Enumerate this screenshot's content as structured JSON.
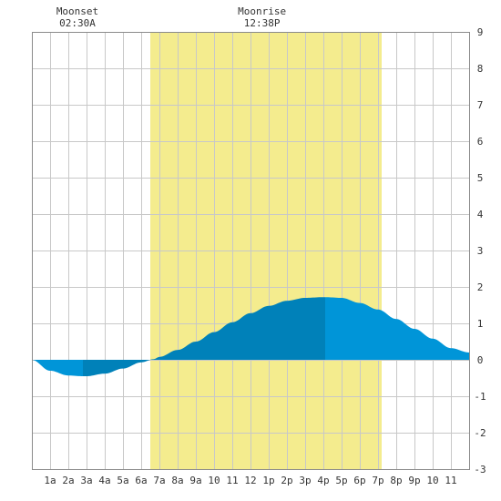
{
  "chart_data": {
    "type": "area",
    "title": "",
    "xlabel": "",
    "ylabel": "",
    "x_range": [
      0,
      24
    ],
    "ylim": [
      -3,
      9
    ],
    "y_ticks": [
      -3,
      -2,
      -1,
      0,
      1,
      2,
      3,
      4,
      5,
      6,
      7,
      8,
      9
    ],
    "x_tick_labels": [
      {
        "hour": 1,
        "label": "1a"
      },
      {
        "hour": 2,
        "label": "2a"
      },
      {
        "hour": 3,
        "label": "3a"
      },
      {
        "hour": 4,
        "label": "4a"
      },
      {
        "hour": 5,
        "label": "5a"
      },
      {
        "hour": 6,
        "label": "6a"
      },
      {
        "hour": 7,
        "label": "7a"
      },
      {
        "hour": 8,
        "label": "8a"
      },
      {
        "hour": 9,
        "label": "9a"
      },
      {
        "hour": 10,
        "label": "10"
      },
      {
        "hour": 11,
        "label": "11"
      },
      {
        "hour": 12,
        "label": "12"
      },
      {
        "hour": 13,
        "label": "1p"
      },
      {
        "hour": 14,
        "label": "2p"
      },
      {
        "hour": 15,
        "label": "3p"
      },
      {
        "hour": 16,
        "label": "4p"
      },
      {
        "hour": 17,
        "label": "5p"
      },
      {
        "hour": 18,
        "label": "6p"
      },
      {
        "hour": 19,
        "label": "7p"
      },
      {
        "hour": 20,
        "label": "8p"
      },
      {
        "hour": 21,
        "label": "9p"
      },
      {
        "hour": 22,
        "label": "10"
      },
      {
        "hour": 23,
        "label": "11"
      }
    ],
    "daylight": {
      "start": 6.5,
      "end": 19.2
    },
    "tide": {
      "x": [
        0,
        1,
        2,
        2.8,
        3,
        4,
        5,
        6,
        6.7,
        7,
        8,
        9,
        10,
        11,
        12,
        13,
        14,
        15,
        16,
        16.1,
        17,
        18,
        19,
        20,
        21,
        22,
        23,
        24
      ],
      "y": [
        0.0,
        -0.3,
        -0.43,
        -0.45,
        -0.45,
        -0.38,
        -0.24,
        -0.07,
        0.02,
        0.08,
        0.27,
        0.5,
        0.76,
        1.03,
        1.28,
        1.48,
        1.62,
        1.7,
        1.72,
        1.72,
        1.7,
        1.56,
        1.38,
        1.12,
        0.85,
        0.58,
        0.32,
        0.2
      ],
      "bands": [
        {
          "start": 0,
          "end": 2.8,
          "color": "#0095d8"
        },
        {
          "start": 2.8,
          "end": 6.7,
          "color": "#0081b9"
        },
        {
          "start": 6.7,
          "end": 16.1,
          "color": "#0081b9"
        },
        {
          "start": 16.1,
          "end": 24,
          "color": "#0095d8"
        }
      ]
    },
    "annotations": [
      {
        "label": "Moonset",
        "time": "02:30A",
        "x": 2.5
      },
      {
        "label": "Moonrise",
        "time": "12:38P",
        "x": 12.63
      }
    ],
    "grid": true,
    "colors": {
      "daylight": "#f4ec8e",
      "frame": "#8a8a8a",
      "grid": "#c8c8c8"
    }
  }
}
